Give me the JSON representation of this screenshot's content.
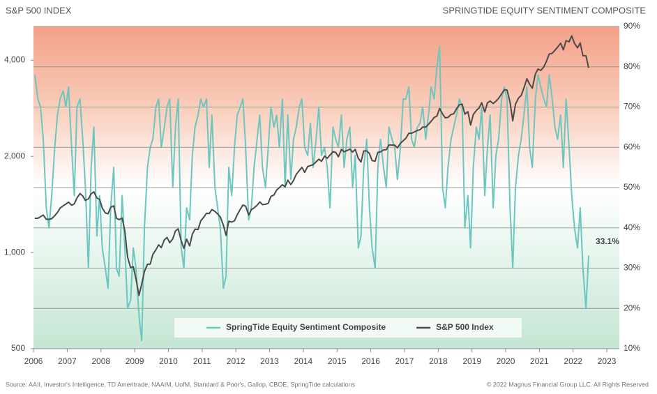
{
  "chart_data": {
    "type": "line",
    "title_left": "S&P 500 INDEX",
    "title_right": "SPRINGTIDE EQUITY SENTIMENT COMPOSITE",
    "legend": "bottom",
    "grid": true,
    "log_y": true,
    "xlim": [
      2006,
      2023.37
    ],
    "xticks": [
      2006,
      2007,
      2008,
      2009,
      2010,
      2011,
      2012,
      2013,
      2014,
      2015,
      2016,
      2017,
      2018,
      2019,
      2020,
      2021,
      2022,
      2023
    ],
    "ylim": [
      500,
      5100
    ],
    "yticks": [
      500,
      {
        "value": 1000,
        "label": "1,000"
      },
      {
        "value": 2000,
        "label": "2,000"
      },
      {
        "value": 4000,
        "label": "4,000"
      }
    ],
    "y2lim": [
      10,
      90
    ],
    "y2ticks": [
      {
        "value": 10,
        "label": "10%"
      },
      {
        "value": 20,
        "label": "20%"
      },
      {
        "value": 30,
        "label": "30%"
      },
      {
        "value": 40,
        "label": "40%"
      },
      {
        "value": 50,
        "label": "50%"
      },
      {
        "value": 60,
        "label": "60%"
      },
      {
        "value": 70,
        "label": "70%"
      },
      {
        "value": 80,
        "label": "80%"
      },
      {
        "value": 90,
        "label": "90%"
      }
    ],
    "x": [
      2006.04,
      2006.13,
      2006.21,
      2006.29,
      2006.38,
      2006.46,
      2006.54,
      2006.63,
      2006.71,
      2006.79,
      2006.88,
      2006.96,
      2007.04,
      2007.13,
      2007.21,
      2007.29,
      2007.38,
      2007.46,
      2007.54,
      2007.63,
      2007.71,
      2007.79,
      2007.88,
      2007.96,
      2008.04,
      2008.13,
      2008.21,
      2008.29,
      2008.38,
      2008.46,
      2008.54,
      2008.63,
      2008.71,
      2008.79,
      2008.88,
      2008.96,
      2009.04,
      2009.13,
      2009.21,
      2009.29,
      2009.38,
      2009.46,
      2009.54,
      2009.63,
      2009.71,
      2009.79,
      2009.88,
      2009.96,
      2010.04,
      2010.13,
      2010.21,
      2010.29,
      2010.38,
      2010.46,
      2010.54,
      2010.63,
      2010.71,
      2010.79,
      2010.88,
      2010.96,
      2011.04,
      2011.13,
      2011.21,
      2011.29,
      2011.38,
      2011.46,
      2011.54,
      2011.63,
      2011.71,
      2011.79,
      2011.88,
      2011.96,
      2012.04,
      2012.13,
      2012.21,
      2012.29,
      2012.38,
      2012.46,
      2012.54,
      2012.63,
      2012.71,
      2012.79,
      2012.88,
      2012.96,
      2013.04,
      2013.13,
      2013.21,
      2013.29,
      2013.38,
      2013.46,
      2013.54,
      2013.63,
      2013.71,
      2013.79,
      2013.88,
      2013.96,
      2014.04,
      2014.13,
      2014.21,
      2014.29,
      2014.38,
      2014.46,
      2014.54,
      2014.63,
      2014.71,
      2014.79,
      2014.88,
      2014.96,
      2015.04,
      2015.13,
      2015.21,
      2015.29,
      2015.38,
      2015.46,
      2015.54,
      2015.63,
      2015.71,
      2015.79,
      2015.88,
      2015.96,
      2016.04,
      2016.13,
      2016.21,
      2016.29,
      2016.38,
      2016.46,
      2016.54,
      2016.63,
      2016.71,
      2016.79,
      2016.88,
      2016.96,
      2017.04,
      2017.13,
      2017.21,
      2017.29,
      2017.38,
      2017.46,
      2017.54,
      2017.63,
      2017.71,
      2017.79,
      2017.88,
      2017.96,
      2018.04,
      2018.13,
      2018.21,
      2018.29,
      2018.38,
      2018.46,
      2018.54,
      2018.63,
      2018.71,
      2018.79,
      2018.88,
      2018.96,
      2019.04,
      2019.13,
      2019.21,
      2019.29,
      2019.38,
      2019.46,
      2019.54,
      2019.63,
      2019.71,
      2019.79,
      2019.88,
      2019.96,
      2020.04,
      2020.13,
      2020.21,
      2020.29,
      2020.38,
      2020.46,
      2020.54,
      2020.63,
      2020.71,
      2020.79,
      2020.88,
      2020.96,
      2021.04,
      2021.13,
      2021.21,
      2021.29,
      2021.38,
      2021.46,
      2021.54,
      2021.63,
      2021.71,
      2021.79,
      2021.88,
      2021.96,
      2022.04,
      2022.13,
      2022.21,
      2022.29,
      2022.38,
      2022.46
    ],
    "series": [
      {
        "name": "SpringTide Equity Sentiment Composite",
        "color": "#6cc6c0",
        "axis": "y2",
        "values": [
          78,
          72,
          70,
          62,
          45,
          40,
          48,
          60,
          68,
          72,
          74,
          70,
          75,
          60,
          48,
          70,
          72,
          62,
          50,
          30,
          55,
          65,
          38,
          48,
          35,
          30,
          25,
          45,
          55,
          30,
          28,
          48,
          35,
          20,
          22,
          35,
          30,
          18,
          12,
          40,
          55,
          60,
          62,
          70,
          72,
          60,
          65,
          70,
          72,
          50,
          65,
          72,
          35,
          30,
          45,
          42,
          58,
          65,
          68,
          72,
          70,
          72,
          55,
          68,
          50,
          45,
          40,
          25,
          28,
          55,
          48,
          60,
          68,
          70,
          72,
          60,
          42,
          45,
          55,
          62,
          68,
          55,
          50,
          60,
          70,
          65,
          68,
          60,
          72,
          50,
          68,
          52,
          62,
          65,
          70,
          72,
          60,
          58,
          66,
          55,
          62,
          70,
          58,
          60,
          55,
          45,
          65,
          62,
          60,
          68,
          55,
          62,
          65,
          50,
          58,
          35,
          38,
          55,
          62,
          45,
          35,
          30,
          55,
          62,
          55,
          50,
          65,
          62,
          60,
          52,
          60,
          72,
          72,
          75,
          62,
          60,
          65,
          66,
          70,
          62,
          68,
          75,
          72,
          80,
          85,
          50,
          45,
          55,
          62,
          65,
          68,
          72,
          70,
          40,
          48,
          35,
          55,
          65,
          62,
          70,
          48,
          60,
          68,
          45,
          58,
          62,
          72,
          75,
          72,
          45,
          30,
          50,
          58,
          62,
          68,
          75,
          60,
          55,
          72,
          78,
          75,
          72,
          70,
          78,
          72,
          65,
          62,
          68,
          55,
          72,
          60,
          48,
          40,
          35,
          45,
          30,
          20,
          33.1
        ],
        "value_labels": [
          null,
          null,
          null,
          null,
          null,
          null,
          null,
          null,
          null,
          null,
          null,
          null,
          null,
          null,
          null,
          null,
          null,
          null,
          null,
          null,
          null,
          null,
          null,
          null,
          null,
          null,
          null,
          null,
          null,
          null,
          null,
          null,
          null,
          null,
          null,
          null,
          null,
          null,
          null,
          null,
          null,
          null,
          null,
          null,
          null,
          null,
          null,
          null,
          null,
          null,
          null,
          null,
          null,
          null,
          null,
          null,
          null,
          null,
          null,
          null,
          null,
          null,
          null,
          null,
          null,
          null,
          null,
          null,
          null,
          null,
          null,
          null,
          null,
          null,
          null,
          null,
          null,
          null,
          null,
          null,
          null,
          null,
          null,
          null,
          null,
          null,
          null,
          null,
          null,
          null,
          null,
          null,
          null,
          null,
          null,
          null,
          null,
          null,
          null,
          null,
          null,
          null,
          null,
          null,
          null,
          null,
          null,
          null,
          null,
          null,
          null,
          null,
          null,
          null,
          null,
          null,
          null,
          null,
          null,
          null,
          null,
          null,
          null,
          null,
          null,
          null,
          null,
          null,
          null,
          null,
          null,
          null,
          null,
          null,
          null,
          null,
          null,
          null,
          null,
          null,
          null,
          null,
          null,
          null,
          null,
          null,
          null,
          null,
          null,
          null,
          null,
          null,
          null,
          null,
          null,
          null,
          null,
          null,
          null,
          null,
          null,
          null,
          null,
          null,
          null,
          null,
          null,
          null,
          null,
          null,
          null,
          null,
          null,
          null,
          null,
          null,
          null,
          null,
          null,
          null,
          null,
          null,
          null,
          null,
          null,
          null,
          null,
          null,
          null,
          null,
          null,
          null,
          null,
          null,
          null,
          null,
          null,
          "33.1%"
        ]
      },
      {
        "name": "S&P 500 Index",
        "color": "#4a4a4a",
        "axis": "y",
        "values": [
          1280,
          1280,
          1295,
          1310,
          1270,
          1270,
          1276,
          1304,
          1335,
          1377,
          1400,
          1418,
          1438,
          1406,
          1420,
          1482,
          1530,
          1503,
          1455,
          1473,
          1526,
          1549,
          1481,
          1468,
          1378,
          1330,
          1322,
          1385,
          1400,
          1280,
          1267,
          1282,
          1166,
          968,
          896,
          903,
          825,
          735,
          797,
          872,
          919,
          919,
          987,
          1020,
          1057,
          1036,
          1095,
          1115,
          1073,
          1104,
          1169,
          1186,
          1089,
          1030,
          1101,
          1049,
          1141,
          1183,
          1180,
          1257,
          1286,
          1327,
          1325,
          1363,
          1345,
          1320,
          1292,
          1218,
          1131,
          1253,
          1246,
          1257,
          1312,
          1365,
          1408,
          1397,
          1310,
          1362,
          1379,
          1406,
          1440,
          1412,
          1416,
          1426,
          1498,
          1514,
          1569,
          1597,
          1630,
          1606,
          1685,
          1632,
          1681,
          1756,
          1805,
          1848,
          1782,
          1859,
          1872,
          1883,
          1923,
          1960,
          1930,
          2003,
          1972,
          2018,
          2067,
          2058,
          1994,
          2104,
          2067,
          2085,
          2107,
          2063,
          2103,
          1972,
          1920,
          2079,
          2080,
          2043,
          1940,
          1932,
          2059,
          2065,
          2096,
          2098,
          2173,
          2170,
          2168,
          2126,
          2198,
          2238,
          2278,
          2363,
          2362,
          2384,
          2411,
          2423,
          2470,
          2471,
          2519,
          2575,
          2647,
          2673,
          2823,
          2713,
          2640,
          2648,
          2705,
          2718,
          2816,
          2901,
          2913,
          2711,
          2760,
          2506,
          2704,
          2784,
          2834,
          2945,
          2752,
          2941,
          2980,
          2926,
          2976,
          3037,
          3140,
          3230,
          3225,
          2954,
          2584,
          2912,
          3044,
          3100,
          3271,
          3500,
          3363,
          3269,
          3621,
          3756,
          3714,
          3811,
          3972,
          4181,
          4204,
          4297,
          4395,
          4522,
          4307,
          4605,
          4567,
          4766,
          4515,
          4373,
          4530,
          4131,
          4132,
          3785
        ]
      }
    ]
  },
  "footer": {
    "source": "Source: AAII, Investor's Intelligence, TD Ameritrade, NAAIM, UofM, Standard & Poor's, Gallop, CBOE, SpringTide calculations",
    "copyright": "© 2022 Magnus Financial Group LLC. All Rights Reserved"
  }
}
